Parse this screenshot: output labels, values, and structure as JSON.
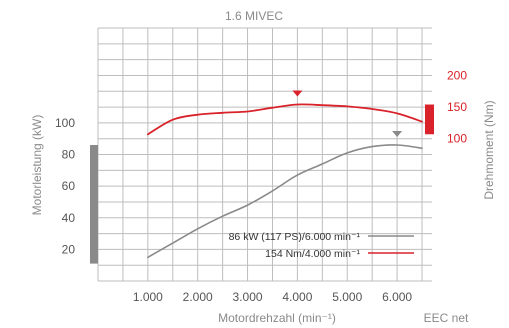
{
  "chart_data": {
    "type": "line",
    "title": "1.6 MIVEC",
    "xlabel": "Motordrehzahl (min⁻¹)",
    "ylabel_left": "Motorleistung (kW)",
    "ylabel_right": "Drehmoment (Nm)",
    "footnote": "EEC net",
    "x_ticks": [
      {
        "value": 1000,
        "label": "1.000"
      },
      {
        "value": 2000,
        "label": "2.000"
      },
      {
        "value": 3000,
        "label": "3.000"
      },
      {
        "value": 4000,
        "label": "4.000"
      },
      {
        "value": 5000,
        "label": "5.000"
      },
      {
        "value": 6000,
        "label": "6.000"
      }
    ],
    "y_left_ticks": [
      20,
      40,
      60,
      80,
      100
    ],
    "y_right_ticks": [
      100,
      150,
      200
    ],
    "xlim": [
      0,
      6700
    ],
    "ylim_left": [
      0,
      160
    ],
    "ylim_right": [
      -125,
      275
    ],
    "grid": true,
    "colors": {
      "power": "#8a8a8a",
      "torque": "#d9222a",
      "grid": "#bdbdbd"
    },
    "series": [
      {
        "key": "power",
        "axis": "left",
        "legend": "86 kW (117 PS)/6.000 min⁻¹",
        "peak": {
          "x": 6000,
          "y": 86
        },
        "x": [
          1000,
          1500,
          2000,
          2500,
          3000,
          3500,
          4000,
          4500,
          5000,
          5500,
          6000,
          6500
        ],
        "y": [
          15,
          24,
          33,
          41,
          48,
          57,
          67,
          74,
          81,
          85,
          86,
          84
        ]
      },
      {
        "key": "torque",
        "axis": "right",
        "legend": "154 Nm/4.000 min⁻¹",
        "peak": {
          "x": 4000,
          "y": 154
        },
        "x": [
          1000,
          1500,
          2000,
          2500,
          3000,
          3500,
          4000,
          4500,
          5000,
          5500,
          6000,
          6500
        ],
        "y": [
          107,
          130,
          138,
          141,
          143,
          149,
          154,
          153,
          151,
          147,
          140,
          127
        ]
      }
    ],
    "left_range_bar": {
      "from": 11,
      "to": 86
    },
    "right_range_bar": {
      "from": 107,
      "to": 154
    }
  }
}
